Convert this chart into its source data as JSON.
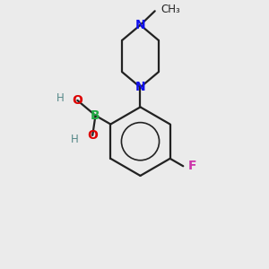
{
  "background_color": "#ebebeb",
  "bond_color": "#222222",
  "bond_width": 1.6,
  "aromatic_lw": 1.2,
  "N_color": "#1010ee",
  "O_color": "#dd0000",
  "B_color": "#22aa44",
  "F_color": "#cc33aa",
  "H_color": "#558888",
  "font_size_atom": 10,
  "font_size_small": 8.5,
  "figsize": [
    3.0,
    3.0
  ],
  "dpi": 100,
  "xlim": [
    0,
    8
  ],
  "ylim": [
    0,
    9
  ]
}
